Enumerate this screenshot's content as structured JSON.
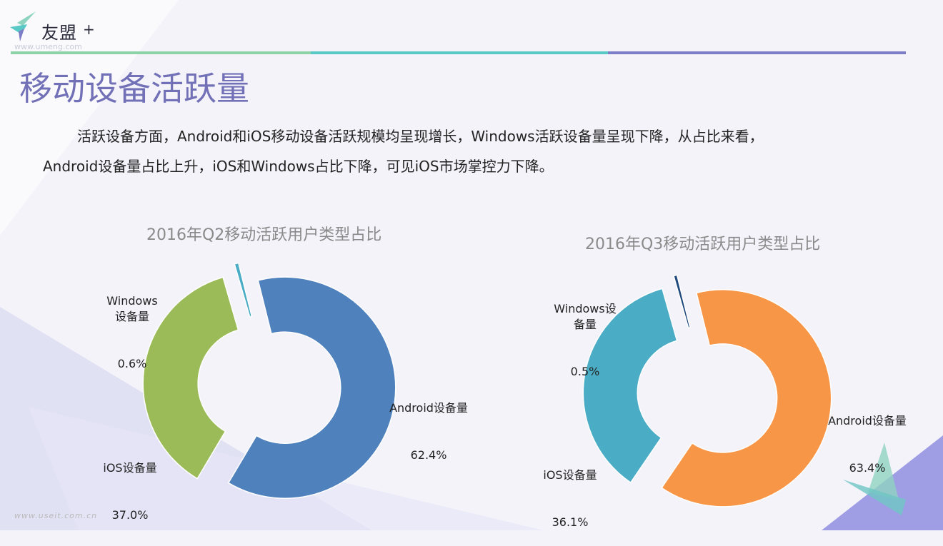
{
  "logo": {
    "text": "友盟",
    "plus": "+",
    "url": "www.umeng.com"
  },
  "colors": {
    "title": "#7270b6"
  },
  "title": "移动设备活跃量",
  "paragraph": {
    "line1": "活跃设备方面，Android和iOS移动设备活跃规模均呈现增长，Windows活跃设备量呈现下降，从占比来看，",
    "line2": "Android设备量占比上升，iOS和Windows占比下降，可见iOS市场掌控力下降。"
  },
  "watermark": "www.useit.com.cn",
  "chart_data": [
    {
      "type": "pie",
      "title": "2016年Q2移动活跃用户类型占比",
      "slices": [
        {
          "label": "Android设备量",
          "value": 62.4,
          "value_label": "62.4%",
          "color": "#4f81bd"
        },
        {
          "label": "iOS设备量",
          "value": 37.0,
          "value_label": "37.0%",
          "color": "#9bbb59"
        },
        {
          "label": "Windows设备量",
          "value": 0.6,
          "value_label": "0.6%",
          "color": "#4bacc6"
        }
      ]
    },
    {
      "type": "pie",
      "title": "2016年Q3移动活跃用户类型占比",
      "slices": [
        {
          "label": "Android设备量",
          "value": 63.4,
          "value_label": "63.4%",
          "color": "#f79646"
        },
        {
          "label": "iOS设备量",
          "value": 36.1,
          "value_label": "36.1%",
          "color": "#4bacc6"
        },
        {
          "label": "Windows设备量",
          "value": 0.5,
          "value_label": "0.5%",
          "color": "#1f497d"
        }
      ]
    }
  ]
}
